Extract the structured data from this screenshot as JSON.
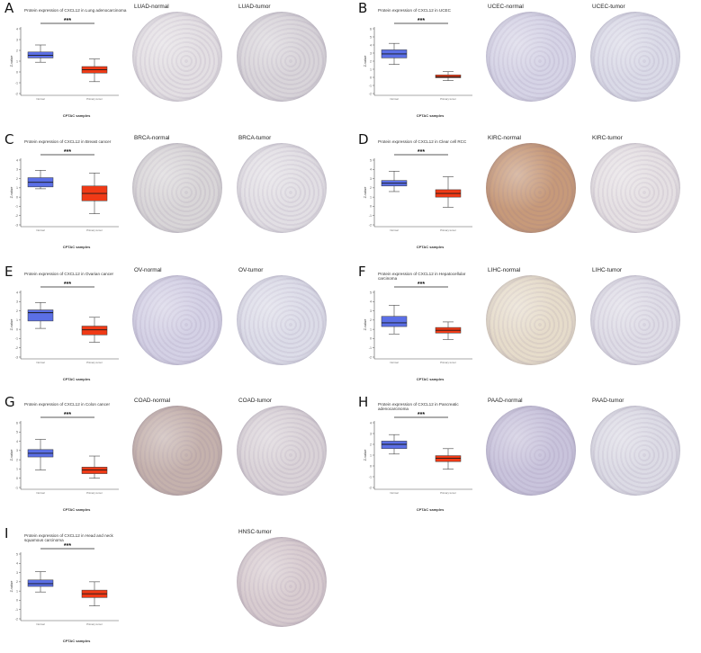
{
  "figure": {
    "colors": {
      "normal_box": "#5b6fe6",
      "tumor_box": "#f03a16",
      "whisker": "#444444",
      "median": "#1a1a1a"
    },
    "significance_mark": "***",
    "panels": [
      {
        "letter": "A",
        "title": "Protein expression of CXCL12 in Lung adenocarcinoma",
        "xlabel": "CPTAC samples",
        "normal_label": "LUAD-normal",
        "tumor_label": "LUAD-tumor",
        "normal_color": "#e3dfe3",
        "tumor_color": "#d9d5da",
        "chart_data": {
          "type": "box",
          "ylabel": "Z-value",
          "xlabel": "CPTAC samples",
          "categories": [
            "Normal",
            "Primary tumor"
          ],
          "boxes": [
            {
              "name": "Normal",
              "min": 0.9,
              "q1": 1.3,
              "median": 1.55,
              "q3": 1.85,
              "max": 2.5
            },
            {
              "name": "Primary tumor",
              "min": -0.9,
              "q1": -0.1,
              "median": 0.2,
              "q3": 0.5,
              "max": 1.2
            }
          ]
        }
      },
      {
        "letter": "B",
        "title": "Protein expression of CXCL12 in UCEC",
        "xlabel": "CPTAC samples",
        "normal_label": "UCEC-normal",
        "tumor_label": "UCEC-tumor",
        "normal_color": "#d6d4e6",
        "tumor_color": "#dadae7",
        "chart_data": {
          "type": "box",
          "ylabel": "Z-value",
          "xlabel": "CPTAC samples",
          "categories": [
            "Normal",
            "Primary tumor"
          ],
          "boxes": [
            {
              "name": "Normal",
              "min": 1.6,
              "q1": 2.4,
              "median": 2.9,
              "q3": 3.4,
              "max": 4.2
            },
            {
              "name": "Primary tumor",
              "min": -0.4,
              "q1": -0.05,
              "median": 0.05,
              "q3": 0.3,
              "max": 0.7
            }
          ]
        }
      },
      {
        "letter": "C",
        "title": "Protein expression of CXCL12 in Breast cancer",
        "xlabel": "CPTAC samples",
        "normal_label": "BRCA-normal",
        "tumor_label": "BRCA-tumor",
        "normal_color": "#d9d6d8",
        "tumor_color": "#e2dfe4",
        "chart_data": {
          "type": "box",
          "ylabel": "Z-value",
          "xlabel": "CPTAC samples",
          "categories": [
            "Normal",
            "Primary tumor"
          ],
          "boxes": [
            {
              "name": "Normal",
              "min": 0.9,
              "q1": 1.1,
              "median": 1.6,
              "q3": 2.1,
              "max": 2.9
            },
            {
              "name": "Primary tumor",
              "min": -1.8,
              "q1": -0.4,
              "median": 0.4,
              "q3": 1.2,
              "max": 2.6
            }
          ]
        }
      },
      {
        "letter": "D",
        "title": "Protein expression of CXCL12 in Clear cell RCC",
        "xlabel": "CPTAC samples",
        "normal_label": "KIRC-normal",
        "tumor_label": "KIRC-tumor",
        "normal_color": "#c79a7a",
        "tumor_color": "#e5e0e3",
        "chart_data": {
          "type": "box",
          "ylabel": "Z-value",
          "xlabel": "CPTAC samples",
          "categories": [
            "Normal",
            "Primary tumor"
          ],
          "boxes": [
            {
              "name": "Normal",
              "min": 1.6,
              "q1": 2.2,
              "median": 2.5,
              "q3": 2.8,
              "max": 3.8
            },
            {
              "name": "Primary tumor",
              "min": -0.1,
              "q1": 1.0,
              "median": 1.4,
              "q3": 1.8,
              "max": 3.2
            }
          ]
        }
      },
      {
        "letter": "E",
        "title": "Protein expression of CXCL12 in Ovarian cancer",
        "xlabel": "CPTAC samples",
        "normal_label": "OV-normal",
        "tumor_label": "OV-tumor",
        "normal_color": "#d4d1e5",
        "tumor_color": "#dcdce8",
        "chart_data": {
          "type": "box",
          "ylabel": "Z-value",
          "xlabel": "CPTAC samples",
          "categories": [
            "Normal",
            "Primary tumor"
          ],
          "boxes": [
            {
              "name": "Normal",
              "min": 0.1,
              "q1": 0.9,
              "median": 1.8,
              "q3": 2.1,
              "max": 2.9
            },
            {
              "name": "Primary tumor",
              "min": -1.4,
              "q1": -0.6,
              "median": -0.05,
              "q3": 0.35,
              "max": 1.3
            }
          ]
        }
      },
      {
        "letter": "F",
        "title": "Protein expression of CXCL12 in Hepatocellular carcinoma",
        "xlabel": "CPTAC samples",
        "normal_label": "LIHC-normal",
        "tumor_label": "LIHC-tumor",
        "normal_color": "#e6dccb",
        "tumor_color": "#dedce6",
        "chart_data": {
          "type": "box",
          "ylabel": "Z-value",
          "xlabel": "CPTAC samples",
          "categories": [
            "Normal",
            "Primary tumor"
          ],
          "boxes": [
            {
              "name": "Normal",
              "min": 0.5,
              "q1": 1.3,
              "median": 1.7,
              "q3": 2.4,
              "max": 3.6
            },
            {
              "name": "Primary tumor",
              "min": -0.1,
              "q1": 0.6,
              "median": 0.9,
              "q3": 1.2,
              "max": 1.8
            }
          ]
        }
      },
      {
        "letter": "G",
        "title": "Protein expression of CXCL12 in Colon cancer",
        "xlabel": "CPTAC samples",
        "normal_label": "COAD-normal",
        "tumor_label": "COAD-tumor",
        "normal_color": "#c5b2ad",
        "tumor_color": "#dad3d8",
        "chart_data": {
          "type": "box",
          "ylabel": "Z-value",
          "xlabel": "CPTAC samples",
          "categories": [
            "Normal",
            "Primary tumor"
          ],
          "boxes": [
            {
              "name": "Normal",
              "min": 0.9,
              "q1": 2.3,
              "median": 2.7,
              "q3": 3.1,
              "max": 4.2
            },
            {
              "name": "Primary tumor",
              "min": 0.0,
              "q1": 0.5,
              "median": 0.9,
              "q3": 1.2,
              "max": 2.4
            }
          ]
        }
      },
      {
        "letter": "H",
        "title": "Protein expression of CXCL12 in Pancreatic adenocarcinoma",
        "xlabel": "CPTAC samples",
        "normal_label": "PAAD-normal",
        "tumor_label": "PAAD-tumor",
        "normal_color": "#c9c4dc",
        "tumor_color": "#dcdbe5",
        "chart_data": {
          "type": "box",
          "ylabel": "Z-value",
          "xlabel": "CPTAC samples",
          "categories": [
            "Normal",
            "Primary tumor"
          ],
          "boxes": [
            {
              "name": "Normal",
              "min": 1.1,
              "q1": 1.6,
              "median": 2.0,
              "q3": 2.3,
              "max": 2.9
            },
            {
              "name": "Primary tumor",
              "min": -0.3,
              "q1": 0.4,
              "median": 0.7,
              "q3": 0.95,
              "max": 1.6
            }
          ]
        }
      },
      {
        "letter": "I",
        "title": "Protein expression of CXCL12 in Head and neck squamous carcinoma",
        "xlabel": "CPTAC samples",
        "normal_label": "",
        "tumor_label": "HNSC-tumor",
        "normal_color": "",
        "tumor_color": "#d8ccd0",
        "chart_data": {
          "type": "box",
          "ylabel": "Z-value",
          "xlabel": "CPTAC samples",
          "categories": [
            "Normal",
            "Primary tumor"
          ],
          "boxes": [
            {
              "name": "Normal",
              "min": 0.9,
              "q1": 1.5,
              "median": 1.8,
              "q3": 2.2,
              "max": 3.1
            },
            {
              "name": "Primary tumor",
              "min": -0.6,
              "q1": 0.3,
              "median": 0.7,
              "q3": 1.1,
              "max": 2.0
            }
          ]
        }
      }
    ]
  }
}
